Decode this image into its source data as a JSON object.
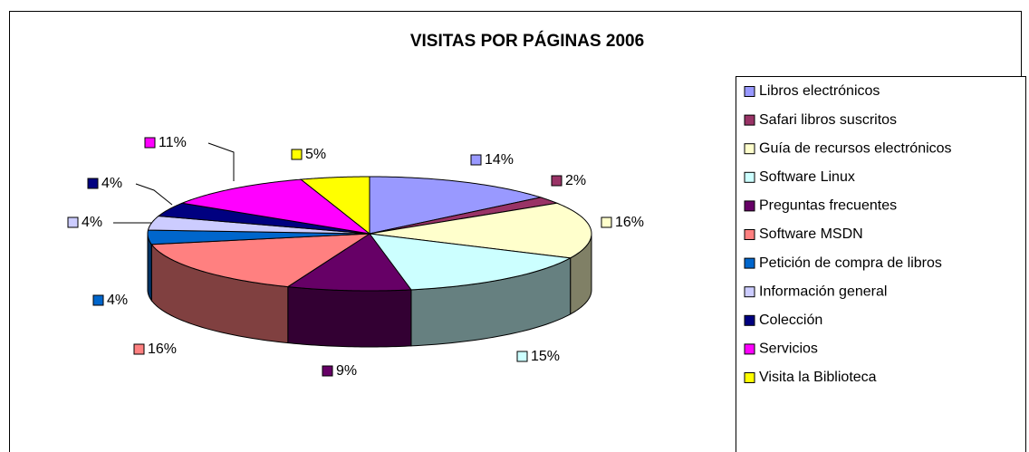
{
  "chart_data": {
    "type": "pie3d",
    "title": "VISITAS POR PÁGINAS 2006",
    "categories": [
      "Libros electrónicos",
      "Safari libros suscritos",
      "Guía de recursos electrónicos",
      "Software Linux",
      "Preguntas frecuentes",
      "Software MSDN",
      "Petición de compra de libros",
      "Información general",
      "Colección",
      "Servicios",
      "Visita la Biblioteca"
    ],
    "values": [
      14,
      2,
      16,
      15,
      9,
      16,
      4,
      4,
      4,
      11,
      5
    ],
    "value_labels": [
      "14%",
      "2%",
      "16%",
      "15%",
      "9%",
      "16%",
      "4%",
      "4%",
      "4%",
      "11%",
      "5%"
    ],
    "colors": [
      "#9999ff",
      "#993366",
      "#ffffcc",
      "#ccffff",
      "#660066",
      "#ff8080",
      "#0066cc",
      "#ccccff",
      "#000080",
      "#ff00ff",
      "#ffff00"
    ],
    "legend": "right"
  }
}
